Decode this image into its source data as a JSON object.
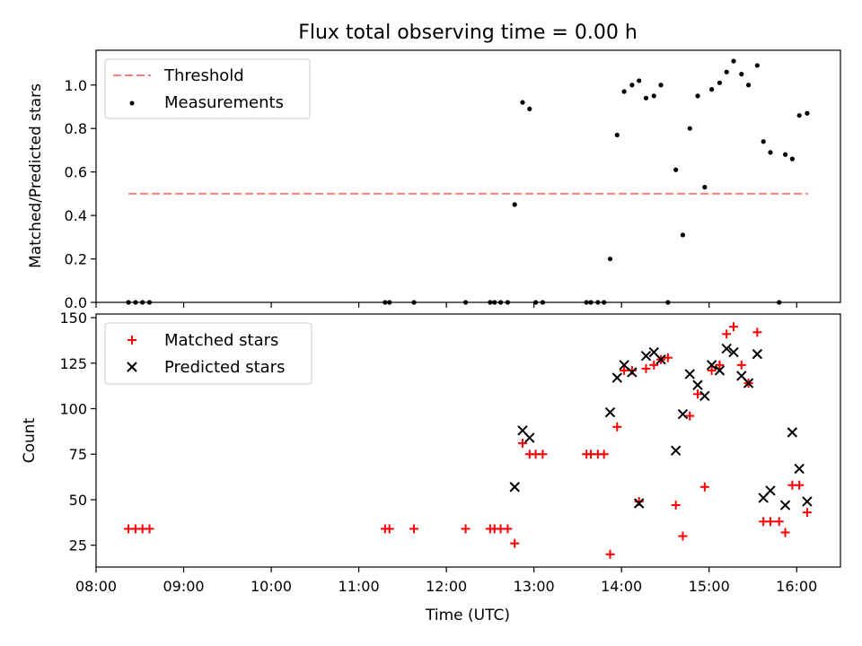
{
  "title": "Flux total observing time = 0.00 h",
  "chart_data": [
    {
      "type": "scatter",
      "ylabel": "Matched/Predicted stars",
      "xlim": [
        8.0,
        16.5
      ],
      "ylim": [
        0,
        1.16
      ],
      "x_is_time_hours": true,
      "yticks": [
        0.0,
        0.2,
        0.4,
        0.6,
        0.8,
        1.0
      ],
      "ytick_labels": [
        "0.0",
        "0.2",
        "0.4",
        "0.6",
        "0.8",
        "1.0"
      ],
      "threshold": {
        "name": "Threshold",
        "value": 0.5,
        "x_range": [
          8.37,
          16.13
        ],
        "color": "#ff7f7f",
        "style": "dashed"
      },
      "series": [
        {
          "name": "Measurements",
          "marker": "dot",
          "color": "#000000",
          "points": [
            [
              8.37,
              0
            ],
            [
              8.45,
              0
            ],
            [
              8.53,
              0
            ],
            [
              8.61,
              0
            ],
            [
              11.3,
              0
            ],
            [
              11.35,
              0
            ],
            [
              11.63,
              0
            ],
            [
              12.22,
              0
            ],
            [
              12.5,
              0
            ],
            [
              12.55,
              0
            ],
            [
              12.62,
              0
            ],
            [
              12.7,
              0
            ],
            [
              12.78,
              0.45
            ],
            [
              12.87,
              0.92
            ],
            [
              12.95,
              0.89
            ],
            [
              13.02,
              0
            ],
            [
              13.1,
              0
            ],
            [
              13.6,
              0
            ],
            [
              13.65,
              0
            ],
            [
              13.73,
              0
            ],
            [
              13.8,
              0
            ],
            [
              13.87,
              0.2
            ],
            [
              13.95,
              0.77
            ],
            [
              14.03,
              0.97
            ],
            [
              14.12,
              1.0
            ],
            [
              14.2,
              1.02
            ],
            [
              14.28,
              0.94
            ],
            [
              14.37,
              0.95
            ],
            [
              14.45,
              1.0
            ],
            [
              14.53,
              0
            ],
            [
              14.62,
              0.61
            ],
            [
              14.7,
              0.31
            ],
            [
              14.78,
              0.8
            ],
            [
              14.87,
              0.95
            ],
            [
              14.95,
              0.53
            ],
            [
              15.03,
              0.98
            ],
            [
              15.12,
              1.01
            ],
            [
              15.2,
              1.06
            ],
            [
              15.28,
              1.11
            ],
            [
              15.37,
              1.05
            ],
            [
              15.45,
              1.0
            ],
            [
              15.55,
              1.09
            ],
            [
              15.62,
              0.74
            ],
            [
              15.7,
              0.69
            ],
            [
              15.8,
              0
            ],
            [
              15.87,
              0.68
            ],
            [
              15.95,
              0.66
            ],
            [
              16.03,
              0.86
            ],
            [
              16.12,
              0.87
            ]
          ]
        }
      ]
    },
    {
      "type": "scatter",
      "xlabel": "Time (UTC)",
      "ylabel": "Count",
      "xlim": [
        8.0,
        16.5
      ],
      "ylim": [
        13,
        152
      ],
      "x_is_time_hours": true,
      "xticks": [
        8,
        9,
        10,
        11,
        12,
        13,
        14,
        15,
        16
      ],
      "xtick_labels": [
        "08:00",
        "09:00",
        "10:00",
        "11:00",
        "12:00",
        "13:00",
        "14:00",
        "15:00",
        "16:00"
      ],
      "yticks": [
        25,
        50,
        75,
        100,
        125,
        150
      ],
      "ytick_labels": [
        "25",
        "50",
        "75",
        "100",
        "125",
        "150"
      ],
      "series": [
        {
          "name": "Matched stars",
          "marker": "plus",
          "color": "#ff0000",
          "points": [
            [
              8.37,
              34
            ],
            [
              8.45,
              34
            ],
            [
              8.53,
              34
            ],
            [
              8.61,
              34
            ],
            [
              11.3,
              34
            ],
            [
              11.35,
              34
            ],
            [
              11.63,
              34
            ],
            [
              12.22,
              34
            ],
            [
              12.5,
              34
            ],
            [
              12.55,
              34
            ],
            [
              12.62,
              34
            ],
            [
              12.7,
              34
            ],
            [
              12.78,
              26
            ],
            [
              12.87,
              81
            ],
            [
              12.95,
              75
            ],
            [
              13.02,
              75
            ],
            [
              13.1,
              75
            ],
            [
              13.6,
              75
            ],
            [
              13.65,
              75
            ],
            [
              13.73,
              75
            ],
            [
              13.8,
              75
            ],
            [
              13.87,
              20
            ],
            [
              13.95,
              90
            ],
            [
              14.03,
              121
            ],
            [
              14.12,
              121
            ],
            [
              14.2,
              49
            ],
            [
              14.28,
              122
            ],
            [
              14.37,
              124
            ],
            [
              14.45,
              127
            ],
            [
              14.53,
              128
            ],
            [
              14.62,
              47
            ],
            [
              14.7,
              30
            ],
            [
              14.78,
              96
            ],
            [
              14.87,
              108
            ],
            [
              14.95,
              57
            ],
            [
              15.03,
              121
            ],
            [
              15.12,
              124
            ],
            [
              15.2,
              141
            ],
            [
              15.28,
              145
            ],
            [
              15.37,
              124
            ],
            [
              15.45,
              114
            ],
            [
              15.55,
              142
            ],
            [
              15.62,
              38
            ],
            [
              15.7,
              38
            ],
            [
              15.8,
              38
            ],
            [
              15.87,
              32
            ],
            [
              15.95,
              58
            ],
            [
              16.03,
              58
            ],
            [
              16.12,
              43
            ]
          ]
        },
        {
          "name": "Predicted stars",
          "marker": "cross",
          "color": "#000000",
          "points": [
            [
              12.78,
              57
            ],
            [
              12.87,
              88
            ],
            [
              12.95,
              84
            ],
            [
              13.87,
              98
            ],
            [
              13.95,
              117
            ],
            [
              14.03,
              124
            ],
            [
              14.12,
              120
            ],
            [
              14.2,
              48
            ],
            [
              14.28,
              129
            ],
            [
              14.37,
              131
            ],
            [
              14.45,
              127
            ],
            [
              14.62,
              77
            ],
            [
              14.7,
              97
            ],
            [
              14.78,
              119
            ],
            [
              14.87,
              113
            ],
            [
              14.95,
              107
            ],
            [
              15.03,
              124
            ],
            [
              15.12,
              121
            ],
            [
              15.2,
              133
            ],
            [
              15.28,
              131
            ],
            [
              15.37,
              118
            ],
            [
              15.45,
              114
            ],
            [
              15.55,
              130
            ],
            [
              15.62,
              51
            ],
            [
              15.7,
              55
            ],
            [
              15.87,
              47
            ],
            [
              15.95,
              87
            ],
            [
              16.03,
              67
            ],
            [
              16.12,
              49
            ]
          ]
        }
      ]
    }
  ]
}
